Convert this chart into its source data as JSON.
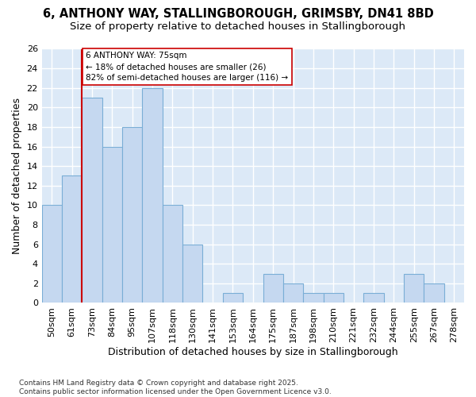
{
  "title_line1": "6, ANTHONY WAY, STALLINGBOROUGH, GRIMSBY, DN41 8BD",
  "title_line2": "Size of property relative to detached houses in Stallingborough",
  "xlabel": "Distribution of detached houses by size in Stallingborough",
  "ylabel": "Number of detached properties",
  "categories": [
    "50sqm",
    "61sqm",
    "73sqm",
    "84sqm",
    "95sqm",
    "107sqm",
    "118sqm",
    "130sqm",
    "141sqm",
    "153sqm",
    "164sqm",
    "175sqm",
    "187sqm",
    "198sqm",
    "210sqm",
    "221sqm",
    "232sqm",
    "244sqm",
    "255sqm",
    "267sqm",
    "278sqm"
  ],
  "values": [
    10,
    13,
    21,
    16,
    18,
    22,
    10,
    6,
    0,
    1,
    0,
    3,
    2,
    1,
    1,
    0,
    1,
    0,
    3,
    2,
    0
  ],
  "bar_color": "#c5d8f0",
  "bar_edge_color": "#7aaed6",
  "annotation_line1": "6 ANTHONY WAY: 75sqm",
  "annotation_line2": "← 18% of detached houses are smaller (26)",
  "annotation_line3": "82% of semi-detached houses are larger (116) →",
  "annotation_box_edge": "#cc0000",
  "vline_color": "#cc0000",
  "vline_x_index": 2,
  "ylim": [
    0,
    26
  ],
  "yticks": [
    0,
    2,
    4,
    6,
    8,
    10,
    12,
    14,
    16,
    18,
    20,
    22,
    24,
    26
  ],
  "background_color": "#dce9f7",
  "grid_color": "#ffffff",
  "fig_background": "#ffffff",
  "footer": "Contains HM Land Registry data © Crown copyright and database right 2025.\nContains public sector information licensed under the Open Government Licence v3.0.",
  "title_fontsize": 10.5,
  "subtitle_fontsize": 9.5,
  "tick_fontsize": 8,
  "ylabel_fontsize": 9,
  "xlabel_fontsize": 9,
  "annotation_fontsize": 7.5,
  "footer_fontsize": 6.5
}
